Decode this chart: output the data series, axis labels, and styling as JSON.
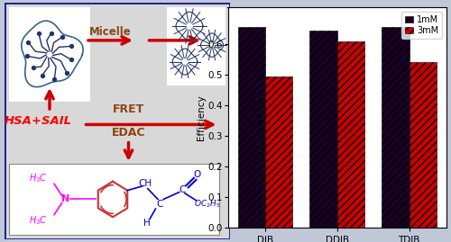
{
  "bar_categories": [
    "DIB",
    "DDIB",
    "TDIB"
  ],
  "bar_values_1mM": [
    0.655,
    0.645,
    0.655
  ],
  "bar_values_3mM": [
    0.495,
    0.608,
    0.54
  ],
  "bar_color_1mM": "#1a0026",
  "bar_color_3mM": "#cc0000",
  "ylabel": "Efficiency",
  "ylim": [
    0.0,
    0.72
  ],
  "yticks": [
    0.0,
    0.1,
    0.2,
    0.3,
    0.4,
    0.5,
    0.6
  ],
  "legend_1mM": "1mM",
  "legend_3mM": "3mM",
  "bg_color": "#d8d8d8",
  "fig_bg": "#c0c8d8",
  "border_color": "#1a1a8c",
  "micelle_text_color": "#8B4513",
  "fret_edac_color": "#8B4513",
  "hsa_sail_color": "#ff0000",
  "arrow_color": "#cc0000",
  "chem_magenta": "#ff00ff",
  "chem_blue": "#0000cc",
  "chem_red": "#cc3333"
}
